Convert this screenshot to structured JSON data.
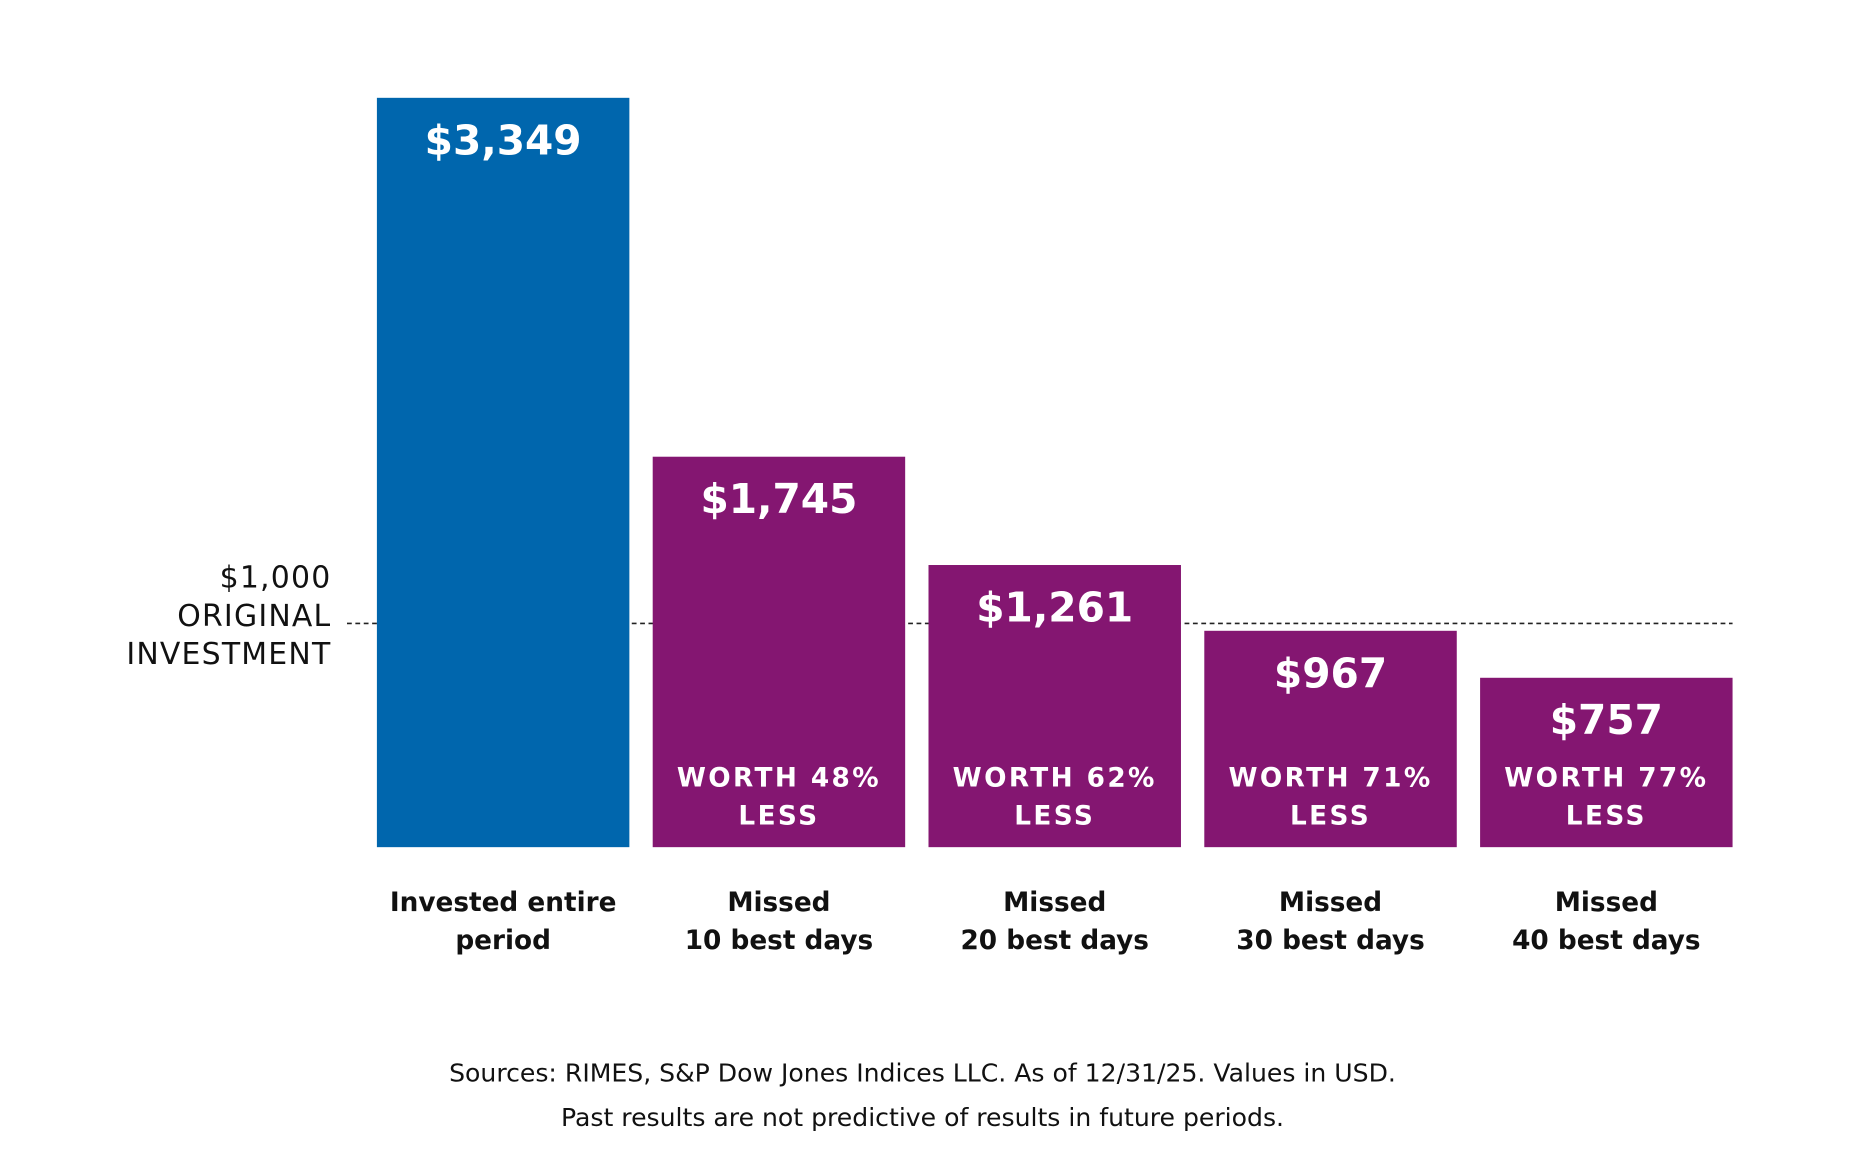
{
  "chart_data": {
    "type": "bar",
    "categories": [
      [
        "Invested entire",
        "period"
      ],
      [
        "Missed",
        "10 best days"
      ],
      [
        "Missed",
        "20 best days"
      ],
      [
        "Missed",
        "30 best days"
      ],
      [
        "Missed",
        "40 best days"
      ]
    ],
    "values": [
      3349,
      1745,
      1261,
      967,
      757
    ],
    "value_labels": [
      "$3,349",
      "$1,745",
      "$1,261",
      "$967",
      "$757"
    ],
    "colors": [
      "#0066ad",
      "#841671",
      "#841671",
      "#841671",
      "#841671"
    ],
    "annotations": [
      null,
      [
        "WORTH 48%",
        "LESS"
      ],
      [
        "WORTH 62%",
        "LESS"
      ],
      [
        "WORTH 71%",
        "LESS"
      ],
      [
        "WORTH 77%",
        "LESS"
      ]
    ],
    "ylim": [
      0,
      3500
    ],
    "reference_line": {
      "value": 1000,
      "label": [
        "$1,000",
        "ORIGINAL",
        "INVESTMENT"
      ]
    },
    "footnote": [
      "Sources: RIMES, S&P Dow Jones Indices LLC. As of 12/31/25. Values in USD.",
      "Past results are not predictive of results in future periods."
    ]
  }
}
